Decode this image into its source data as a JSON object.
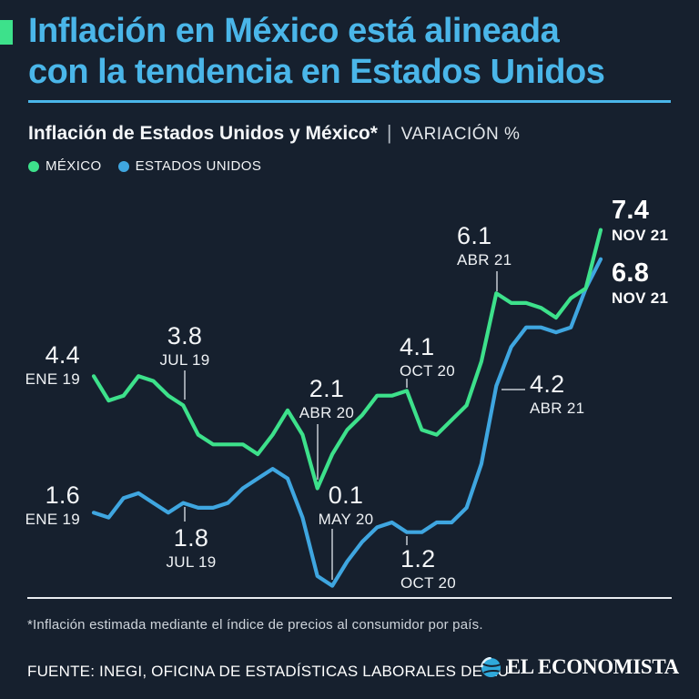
{
  "colors": {
    "background": "#16202e",
    "accent_green": "#3de18b",
    "accent_blue": "#3fa6e0",
    "title_cyan": "#4ab6e9",
    "text_white": "#f3f5f7"
  },
  "header": {
    "title_line1": "Inflación en México está alineada",
    "title_line2": "con la tendencia en Estados Unidos",
    "subtitle_bold": "Inflación de Estados Unidos y México*",
    "subtitle_sep": "|",
    "subtitle_units": "VARIACIÓN %"
  },
  "legend": {
    "mexico": "MÉXICO",
    "us": "ESTADOS UNIDOS"
  },
  "chart_data": {
    "type": "line",
    "x_unit": "month",
    "x_range": [
      "ENE 19",
      "NOV 21"
    ],
    "n_points": 35,
    "ylim": [
      0,
      8
    ],
    "grid": false,
    "legend_position": "top-left",
    "series": [
      {
        "name": "MÉXICO",
        "color": "#3de18b",
        "values": [
          4.4,
          3.9,
          4.0,
          4.4,
          4.3,
          4.0,
          3.8,
          3.2,
          3.0,
          3.0,
          3.0,
          2.8,
          3.2,
          3.7,
          3.2,
          2.1,
          2.8,
          3.3,
          3.6,
          4.0,
          4.0,
          4.1,
          3.3,
          3.2,
          3.5,
          3.8,
          4.7,
          6.1,
          5.9,
          5.9,
          5.8,
          5.6,
          6.0,
          6.2,
          7.4
        ]
      },
      {
        "name": "ESTADOS UNIDOS",
        "color": "#3fa6e0",
        "values": [
          1.6,
          1.5,
          1.9,
          2.0,
          1.8,
          1.6,
          1.8,
          1.7,
          1.7,
          1.8,
          2.1,
          2.3,
          2.5,
          2.3,
          1.5,
          0.3,
          0.1,
          0.6,
          1.0,
          1.3,
          1.4,
          1.2,
          1.2,
          1.4,
          1.4,
          1.7,
          2.6,
          4.2,
          5.0,
          5.4,
          5.4,
          5.3,
          5.4,
          6.2,
          6.8
        ]
      }
    ],
    "annotations": [
      {
        "id": "mx_ene19",
        "series": 0,
        "index": 0,
        "value": "4.4",
        "date": "ENE 19",
        "bold": false
      },
      {
        "id": "mx_jul19",
        "series": 0,
        "index": 6,
        "value": "3.8",
        "date": "JUL 19",
        "bold": false
      },
      {
        "id": "mx_abr20",
        "series": 0,
        "index": 15,
        "value": "2.1",
        "date": "ABR 20",
        "bold": false
      },
      {
        "id": "mx_oct20",
        "series": 0,
        "index": 21,
        "value": "4.1",
        "date": "OCT 20",
        "bold": false
      },
      {
        "id": "mx_abr21",
        "series": 0,
        "index": 27,
        "value": "6.1",
        "date": "ABR 21",
        "bold": false
      },
      {
        "id": "mx_nov21",
        "series": 0,
        "index": 34,
        "value": "7.4",
        "date": "NOV 21",
        "bold": true
      },
      {
        "id": "us_ene19",
        "series": 1,
        "index": 0,
        "value": "1.6",
        "date": "ENE 19",
        "bold": false
      },
      {
        "id": "us_jul19",
        "series": 1,
        "index": 6,
        "value": "1.8",
        "date": "JUL 19",
        "bold": false
      },
      {
        "id": "us_may20",
        "series": 1,
        "index": 16,
        "value": "0.1",
        "date": "MAY 20",
        "bold": false
      },
      {
        "id": "us_oct20",
        "series": 1,
        "index": 21,
        "value": "1.2",
        "date": "OCT 20",
        "bold": false
      },
      {
        "id": "us_abr21",
        "series": 1,
        "index": 27,
        "value": "4.2",
        "date": "ABR 21",
        "bold": false
      },
      {
        "id": "us_nov21",
        "series": 1,
        "index": 34,
        "value": "6.8",
        "date": "NOV 21",
        "bold": true
      }
    ]
  },
  "footer": {
    "footnote": "*Inflación estimada mediante el índice de precios al consumidor por país.",
    "source": "FUENTE: INEGI, OFICINA DE ESTADÍSTICAS LABORALES DE EU",
    "brand": "EL ECONOMISTA"
  }
}
